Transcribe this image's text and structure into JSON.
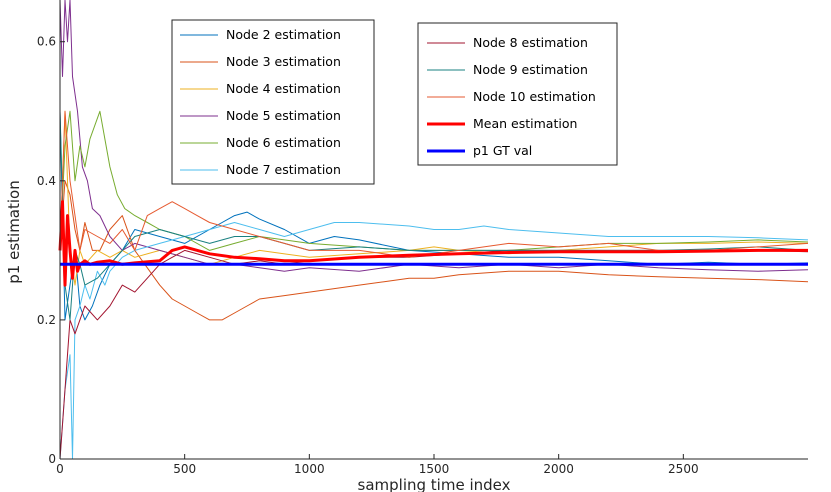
{
  "chart_data": {
    "type": "line",
    "title": "",
    "xlabel": "sampling time index",
    "ylabel": "p1 estimation",
    "xlim": [
      0,
      3000
    ],
    "ylim": [
      0,
      0.66
    ],
    "xticks": [
      0,
      500,
      1000,
      1500,
      2000,
      2500
    ],
    "xtick_labels": [
      "0",
      "500",
      "1000",
      "1500",
      "2000",
      "2500"
    ],
    "yticks": [
      0,
      0.2,
      0.4,
      0.6
    ],
    "ytick_labels": [
      "0",
      "0.2",
      "0.4",
      "0.6"
    ],
    "legend_left": [
      "Node 2 estimation",
      "Node 3 estimation",
      "Node 4 estimation",
      "Node 5 estimation",
      "Node 6 estimation",
      "Node 7 estimation"
    ],
    "legend_right": [
      "Node 8 estimation",
      "Node 9 estimation",
      "Node 10 estimation",
      "Mean estimation",
      "p1 GT val"
    ],
    "series": [
      {
        "name": "Node 2 estimation",
        "color": "#0072BD",
        "width": 1,
        "x": [
          0,
          20,
          40,
          60,
          80,
          100,
          130,
          160,
          200,
          250,
          300,
          400,
          500,
          600,
          700,
          750,
          800,
          900,
          1000,
          1100,
          1200,
          1400,
          1600,
          1800,
          2000,
          2200,
          2400,
          2600,
          2800,
          3000
        ],
        "y": [
          0.5,
          0.2,
          0.25,
          0.3,
          0.22,
          0.2,
          0.22,
          0.25,
          0.28,
          0.3,
          0.33,
          0.32,
          0.31,
          0.33,
          0.35,
          0.355,
          0.345,
          0.33,
          0.31,
          0.32,
          0.315,
          0.3,
          0.295,
          0.29,
          0.29,
          0.285,
          0.28,
          0.283,
          0.28,
          0.282
        ]
      },
      {
        "name": "Node 3 estimation",
        "color": "#D95319",
        "width": 1,
        "x": [
          0,
          20,
          40,
          60,
          80,
          100,
          130,
          160,
          200,
          250,
          300,
          400,
          450,
          500,
          550,
          600,
          650,
          700,
          750,
          800,
          900,
          1000,
          1100,
          1200,
          1300,
          1400,
          1500,
          1600,
          1800,
          2000,
          2200,
          2400,
          2600,
          2800,
          3000
        ],
        "y": [
          0.3,
          0.4,
          0.38,
          0.33,
          0.3,
          0.34,
          0.3,
          0.3,
          0.33,
          0.35,
          0.3,
          0.25,
          0.23,
          0.22,
          0.21,
          0.2,
          0.2,
          0.21,
          0.22,
          0.23,
          0.235,
          0.24,
          0.245,
          0.25,
          0.255,
          0.26,
          0.26,
          0.265,
          0.27,
          0.27,
          0.265,
          0.262,
          0.26,
          0.258,
          0.255
        ]
      },
      {
        "name": "Node 4 estimation",
        "color": "#EDB120",
        "width": 1,
        "x": [
          0,
          20,
          40,
          60,
          80,
          100,
          150,
          200,
          250,
          300,
          400,
          500,
          600,
          700,
          800,
          1000,
          1200,
          1400,
          1500,
          1600,
          1800,
          2000,
          2200,
          2400,
          2600,
          2800,
          3000
        ],
        "y": [
          0.3,
          0.5,
          0.3,
          0.25,
          0.3,
          0.28,
          0.3,
          0.29,
          0.3,
          0.29,
          0.3,
          0.29,
          0.28,
          0.29,
          0.3,
          0.29,
          0.295,
          0.3,
          0.305,
          0.3,
          0.295,
          0.3,
          0.305,
          0.31,
          0.31,
          0.312,
          0.31
        ]
      },
      {
        "name": "Node 5 estimation",
        "color": "#7E2F8E",
        "width": 1,
        "x": [
          0,
          10,
          20,
          30,
          40,
          50,
          70,
          90,
          110,
          130,
          160,
          200,
          250,
          300,
          400,
          500,
          600,
          700,
          800,
          900,
          1000,
          1200,
          1400,
          1600,
          1800,
          2000,
          2200,
          2400,
          2600,
          2800,
          3000
        ],
        "y": [
          0.66,
          0.55,
          0.66,
          0.6,
          0.66,
          0.55,
          0.5,
          0.42,
          0.4,
          0.36,
          0.35,
          0.32,
          0.3,
          0.31,
          0.3,
          0.29,
          0.28,
          0.28,
          0.275,
          0.27,
          0.275,
          0.27,
          0.28,
          0.275,
          0.28,
          0.275,
          0.28,
          0.275,
          0.272,
          0.27,
          0.272
        ]
      },
      {
        "name": "Node 6 estimation",
        "color": "#77AC30",
        "width": 1,
        "x": [
          0,
          20,
          40,
          60,
          80,
          100,
          120,
          140,
          160,
          180,
          200,
          230,
          260,
          300,
          350,
          400,
          500,
          600,
          700,
          800,
          900,
          1000,
          1200,
          1400,
          1600,
          1800,
          2000,
          2200,
          2400,
          2600,
          2800,
          3000
        ],
        "y": [
          0.3,
          0.45,
          0.5,
          0.4,
          0.45,
          0.42,
          0.46,
          0.48,
          0.5,
          0.46,
          0.42,
          0.38,
          0.36,
          0.35,
          0.34,
          0.33,
          0.32,
          0.3,
          0.31,
          0.32,
          0.315,
          0.31,
          0.305,
          0.3,
          0.3,
          0.3,
          0.305,
          0.31,
          0.31,
          0.312,
          0.315,
          0.312
        ]
      },
      {
        "name": "Node 7 estimation",
        "color": "#4DBEEE",
        "width": 1,
        "x": [
          0,
          20,
          40,
          50,
          60,
          80,
          100,
          120,
          150,
          180,
          200,
          250,
          300,
          400,
          500,
          600,
          700,
          800,
          900,
          1000,
          1100,
          1200,
          1400,
          1500,
          1600,
          1700,
          1800,
          2000,
          2200,
          2400,
          2600,
          2800,
          3000
        ],
        "y": [
          0.0,
          0.1,
          0.15,
          0.0,
          0.2,
          0.22,
          0.25,
          0.23,
          0.27,
          0.25,
          0.27,
          0.29,
          0.3,
          0.31,
          0.32,
          0.33,
          0.34,
          0.33,
          0.32,
          0.33,
          0.34,
          0.34,
          0.335,
          0.33,
          0.33,
          0.335,
          0.33,
          0.325,
          0.32,
          0.32,
          0.32,
          0.318,
          0.315
        ]
      },
      {
        "name": "Node 8 estimation",
        "color": "#A2142F",
        "width": 1,
        "x": [
          0,
          20,
          40,
          60,
          80,
          100,
          150,
          200,
          250,
          300,
          350,
          400,
          450,
          500,
          600,
          700,
          800,
          900,
          1000,
          1200,
          1400,
          1600,
          1800,
          2000,
          2200,
          2400,
          2600,
          2800,
          3000
        ],
        "y": [
          0.0,
          0.1,
          0.2,
          0.18,
          0.2,
          0.22,
          0.2,
          0.22,
          0.25,
          0.24,
          0.26,
          0.28,
          0.29,
          0.3,
          0.29,
          0.28,
          0.285,
          0.28,
          0.285,
          0.29,
          0.29,
          0.295,
          0.3,
          0.3,
          0.3,
          0.3,
          0.298,
          0.3,
          0.298
        ]
      },
      {
        "name": "Node 9 estimation",
        "color": "#1A8080",
        "width": 1,
        "x": [
          0,
          20,
          40,
          60,
          80,
          100,
          150,
          200,
          250,
          300,
          400,
          500,
          600,
          700,
          800,
          900,
          1000,
          1200,
          1400,
          1600,
          1800,
          2000,
          2200,
          2400,
          2600,
          2800,
          3000
        ],
        "y": [
          0.5,
          0.25,
          0.2,
          0.3,
          0.28,
          0.25,
          0.26,
          0.28,
          0.3,
          0.32,
          0.33,
          0.32,
          0.31,
          0.32,
          0.32,
          0.31,
          0.3,
          0.305,
          0.3,
          0.3,
          0.3,
          0.3,
          0.3,
          0.3,
          0.302,
          0.305,
          0.3
        ]
      },
      {
        "name": "Node 10 estimation",
        "color": "#E65A30",
        "width": 1,
        "x": [
          0,
          20,
          40,
          60,
          80,
          100,
          150,
          200,
          250,
          300,
          350,
          400,
          450,
          500,
          550,
          600,
          700,
          800,
          900,
          1000,
          1200,
          1400,
          1600,
          1800,
          2000,
          2200,
          2400,
          2600,
          2800,
          3000
        ],
        "y": [
          0.3,
          0.5,
          0.4,
          0.35,
          0.3,
          0.33,
          0.32,
          0.31,
          0.33,
          0.3,
          0.35,
          0.36,
          0.37,
          0.36,
          0.35,
          0.34,
          0.33,
          0.32,
          0.31,
          0.3,
          0.3,
          0.29,
          0.3,
          0.31,
          0.305,
          0.31,
          0.3,
          0.3,
          0.305,
          0.31
        ]
      },
      {
        "name": "Mean estimation",
        "color": "#FF0000",
        "width": 3,
        "x": [
          0,
          10,
          20,
          30,
          40,
          50,
          60,
          70,
          80,
          100,
          120,
          150,
          200,
          250,
          300,
          400,
          450,
          500,
          600,
          700,
          800,
          900,
          1000,
          1200,
          1400,
          1600,
          1800,
          2000,
          2200,
          2400,
          2600,
          2800,
          3000
        ],
        "y": [
          0.3,
          0.37,
          0.25,
          0.35,
          0.3,
          0.26,
          0.3,
          0.27,
          0.28,
          0.285,
          0.28,
          0.283,
          0.285,
          0.28,
          0.282,
          0.285,
          0.3,
          0.305,
          0.295,
          0.29,
          0.288,
          0.285,
          0.285,
          0.29,
          0.293,
          0.295,
          0.297,
          0.298,
          0.298,
          0.298,
          0.299,
          0.3,
          0.3
        ]
      },
      {
        "name": "p1 GT val",
        "color": "#0000FF",
        "width": 3,
        "x": [
          0,
          3000
        ],
        "y": [
          0.28,
          0.28
        ]
      }
    ]
  }
}
